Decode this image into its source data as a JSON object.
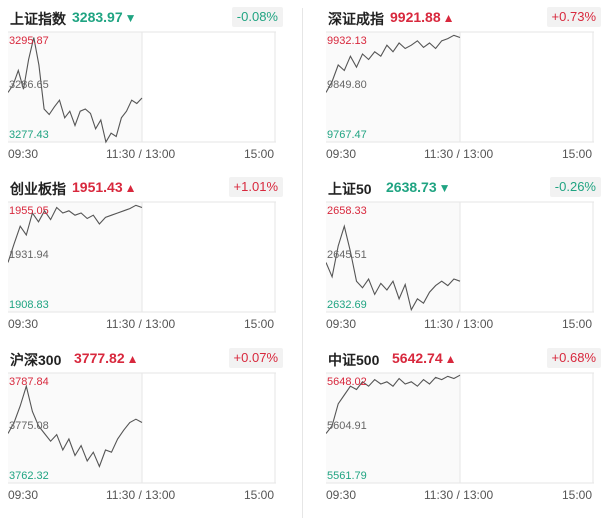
{
  "colors": {
    "up": "#d8283d",
    "down": "#20a482",
    "line": "#555555",
    "grid": "#e6e6e6"
  },
  "panels": [
    {
      "name": "上证指数",
      "price": "3283.97",
      "arrow": "▼",
      "dir": "down",
      "change": "-0.08%",
      "high": "3295.87",
      "mid": "3286.65",
      "low": "3277.43",
      "times": {
        "open": "09:30",
        "mid": "11:30 / 13:00",
        "close": "15:00"
      },
      "line": [
        0.55,
        0.48,
        0.35,
        0.52,
        0.25,
        0.05,
        0.3,
        0.7,
        0.75,
        0.68,
        0.62,
        0.78,
        0.72,
        0.85,
        0.72,
        0.7,
        0.74,
        0.88,
        0.8,
        1.0,
        0.92,
        0.95,
        0.78,
        0.72,
        0.62,
        0.65,
        0.6
      ]
    },
    {
      "name": "深证成指",
      "price": "9921.88",
      "arrow": "▲",
      "dir": "up",
      "change": "+0.73%",
      "high": "9932.13",
      "mid": "9849.80",
      "low": "9767.47",
      "times": {
        "open": "09:30",
        "mid": "11:30 / 13:00",
        "close": "15:00"
      },
      "line": [
        0.55,
        0.45,
        0.3,
        0.35,
        0.22,
        0.32,
        0.2,
        0.25,
        0.18,
        0.22,
        0.12,
        0.18,
        0.1,
        0.15,
        0.12,
        0.08,
        0.14,
        0.1,
        0.15,
        0.08,
        0.06,
        0.03,
        0.05
      ]
    },
    {
      "name": "创业板指",
      "price": "1951.43",
      "arrow": "▲",
      "dir": "up",
      "change": "+1.01%",
      "high": "1955.05",
      "mid": "1931.94",
      "low": "1908.83",
      "times": {
        "open": "09:30",
        "mid": "11:30 / 13:00",
        "close": "15:00"
      },
      "line": [
        0.55,
        0.38,
        0.22,
        0.3,
        0.1,
        0.18,
        0.08,
        0.16,
        0.05,
        0.1,
        0.08,
        0.12,
        0.1,
        0.15,
        0.12,
        0.2,
        0.14,
        0.12,
        0.1,
        0.08,
        0.06,
        0.03,
        0.05
      ]
    },
    {
      "name": "上证50",
      "price": "2638.73",
      "arrow": "▼",
      "dir": "down",
      "change": "-0.26%",
      "high": "2658.33",
      "mid": "2645.51",
      "low": "2632.69",
      "times": {
        "open": "09:30",
        "mid": "11:30 / 13:00",
        "close": "15:00"
      },
      "line": [
        0.55,
        0.68,
        0.4,
        0.22,
        0.45,
        0.72,
        0.78,
        0.7,
        0.84,
        0.74,
        0.8,
        0.72,
        0.88,
        0.75,
        0.98,
        0.88,
        0.92,
        0.82,
        0.76,
        0.72,
        0.76,
        0.7,
        0.72
      ]
    },
    {
      "name": "沪深300",
      "price": "3777.82",
      "arrow": "▲",
      "dir": "up",
      "change": "+0.07%",
      "high": "3787.84",
      "mid": "3775.08",
      "low": "3762.32",
      "times": {
        "open": "09:30",
        "mid": "11:30 / 13:00",
        "close": "15:00"
      },
      "line": [
        0.55,
        0.45,
        0.3,
        0.12,
        0.35,
        0.48,
        0.55,
        0.62,
        0.56,
        0.7,
        0.6,
        0.75,
        0.66,
        0.8,
        0.72,
        0.85,
        0.7,
        0.72,
        0.6,
        0.52,
        0.45,
        0.42,
        0.45
      ]
    },
    {
      "name": "中证500",
      "price": "5642.74",
      "arrow": "▲",
      "dir": "up",
      "change": "+0.68%",
      "high": "5648.02",
      "mid": "5604.91",
      "low": "5561.79",
      "times": {
        "open": "09:30",
        "mid": "11:30 / 13:00",
        "close": "15:00"
      },
      "line": [
        0.55,
        0.48,
        0.28,
        0.2,
        0.12,
        0.15,
        0.08,
        0.12,
        0.06,
        0.1,
        0.08,
        0.12,
        0.05,
        0.1,
        0.08,
        0.12,
        0.06,
        0.1,
        0.04,
        0.06,
        0.03,
        0.05,
        0.02
      ]
    }
  ]
}
